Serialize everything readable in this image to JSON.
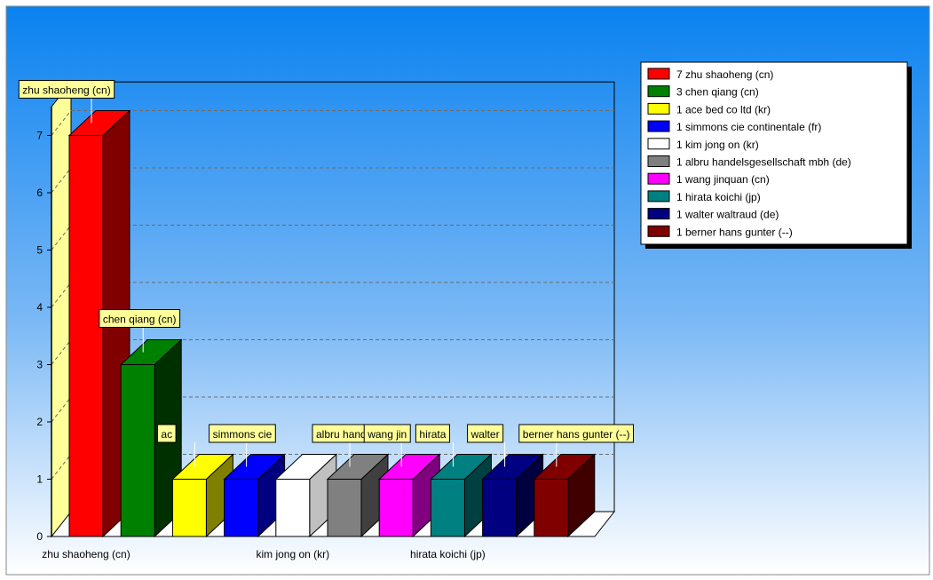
{
  "chart_data": {
    "type": "bar",
    "title": "",
    "xlabel": "",
    "ylabel": "",
    "ylim": [
      0,
      7.5
    ],
    "yticks": [
      0,
      1,
      2,
      3,
      4,
      5,
      6,
      7
    ],
    "grid": true,
    "legend_position": "top-right",
    "three_d": true,
    "categories": [
      "zhu shaoheng (cn)",
      "chen qiang (cn)",
      "ace bed co ltd (kr)",
      "simmons cie continentale (fr)",
      "kim jong on (kr)",
      "albru handelsgesellschaft mbh (de)",
      "wang jinquan (cn)",
      "hirata koichi (jp)",
      "walter waltraud (de)",
      "berner hans gunter (--)"
    ],
    "values": [
      7,
      3,
      1,
      1,
      1,
      1,
      1,
      1,
      1,
      1
    ],
    "colors": [
      "#ff0000",
      "#008000",
      "#ffff00",
      "#0000ff",
      "#ffffff",
      "#808080",
      "#ff00ff",
      "#008080",
      "#000080",
      "#800000"
    ],
    "side_colors": [
      "#800000",
      "#003000",
      "#808000",
      "#000080",
      "#c0c0c0",
      "#404040",
      "#800080",
      "#004040",
      "#000040",
      "#400000"
    ],
    "x_tick_labels": [
      {
        "index": 0,
        "text": "zhu shaoheng (cn)"
      },
      {
        "index": 4,
        "text": "kim jong on (kr)"
      },
      {
        "index": 7,
        "text": "hirata koichi (jp)"
      }
    ],
    "bar_callouts": [
      "zhu shaoheng (cn)",
      "chen qiang (cn)",
      "ac",
      "simmons cie",
      "",
      "albru handelsge",
      "wang jin",
      "hirata",
      "walter",
      "berner hans gunter (--)"
    ],
    "legend": [
      "7 zhu shaoheng (cn)",
      "3 chen qiang (cn)",
      "1 ace bed co ltd (kr)",
      "1 simmons cie continentale (fr)",
      "1 kim jong on (kr)",
      "1 albru handelsgesellschaft mbh (de)",
      "1 wang jinquan (cn)",
      "1 hirata koichi (jp)",
      "1 walter waltraud (de)",
      "1 berner hans gunter (--)"
    ]
  }
}
